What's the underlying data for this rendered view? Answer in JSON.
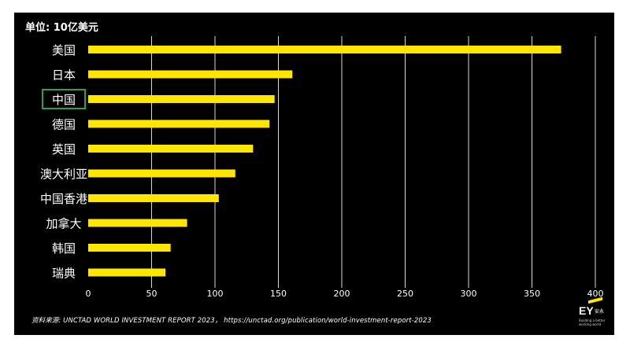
{
  "header": {
    "unit_label": "单位: 10亿美元"
  },
  "footer": {
    "source_text": "资料来源: UNCTAD WORLD INVESTMENT REPORT 2023， https://unctad.org/publication/world-investment-report-2023"
  },
  "logo": {
    "mark": "EY",
    "cn": "安永",
    "tagline_1": "Building a better",
    "tagline_2": "working world"
  },
  "colors": {
    "bar": "#ffe600",
    "background": "#000000",
    "text": "#ffffff",
    "grid": "#ffffff",
    "highlight_box": "#2e9e4f"
  },
  "chart_data": {
    "type": "bar",
    "orientation": "horizontal",
    "categories": [
      "美国",
      "日本",
      "中国",
      "德国",
      "英国",
      "澳大利亚",
      "中国香港",
      "加拿大",
      "韩国",
      "瑞典"
    ],
    "values": [
      373,
      161,
      147,
      143,
      130,
      116,
      103,
      78,
      65,
      61
    ],
    "highlighted_category": "中国",
    "xlim": [
      0,
      400
    ],
    "xticks": [
      0,
      50,
      100,
      150,
      200,
      250,
      300,
      350,
      400
    ],
    "grid": "vertical"
  }
}
